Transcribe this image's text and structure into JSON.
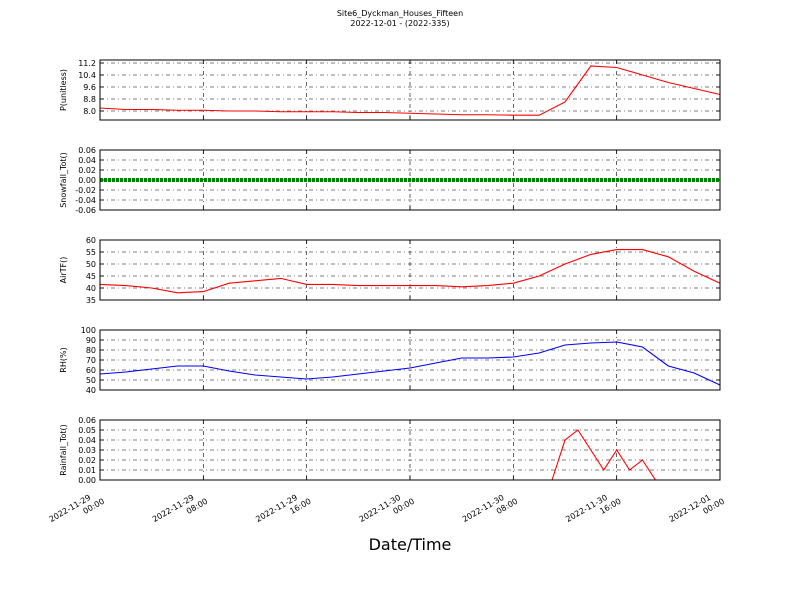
{
  "title": "Site6_Dyckman_Houses_Fifteen",
  "subtitle": "2022-12-01 - (2022-335)",
  "xlabel": "Date/Time",
  "xlim": [
    "2022-11-29 00:00",
    "2022-12-01 00:00"
  ],
  "xticks": [
    {
      "value": "2022-11-29 00:00",
      "label": "2022-11-29\n00:00"
    },
    {
      "value": "2022-11-29 08:00",
      "label": "2022-11-29\n08:00"
    },
    {
      "value": "2022-11-29 16:00",
      "label": "2022-11-29\n16:00"
    },
    {
      "value": "2022-11-30 00:00",
      "label": "2022-11-30\n00:00"
    },
    {
      "value": "2022-11-30 08:00",
      "label": "2022-11-30\n08:00"
    },
    {
      "value": "2022-11-30 16:00",
      "label": "2022-11-30\n16:00"
    },
    {
      "value": "2022-12-01 00:00",
      "label": "2022-12-01\n00:00"
    }
  ],
  "grid": true,
  "chart_data": [
    {
      "type": "line",
      "ylabel": "P(unitless)",
      "color": "#ff0000",
      "ylim": [
        7.4,
        11.4
      ],
      "yticks": [
        {
          "value": 8,
          "label": "8.0"
        },
        {
          "value": 8.8,
          "label": "8.8"
        },
        {
          "value": 9.6,
          "label": "9.6"
        },
        {
          "value": 10.4,
          "label": "10.4"
        },
        {
          "value": 11.2,
          "label": "11.2"
        }
      ],
      "x": [
        "2022-11-29 00:00",
        "2022-11-29 02:00",
        "2022-11-29 04:00",
        "2022-11-29 06:00",
        "2022-11-29 08:00",
        "2022-11-29 10:00",
        "2022-11-29 12:00",
        "2022-11-29 14:00",
        "2022-11-29 16:00",
        "2022-11-29 18:00",
        "2022-11-29 20:00",
        "2022-11-29 22:00",
        "2022-11-30 00:00",
        "2022-11-30 02:00",
        "2022-11-30 04:00",
        "2022-11-30 06:00",
        "2022-11-30 08:00",
        "2022-11-30 10:00",
        "2022-11-30 12:00",
        "2022-11-30 14:00",
        "2022-11-30 16:00",
        "2022-11-30 18:00",
        "2022-11-30 20:00",
        "2022-11-30 22:00",
        "2022-12-01 00:00"
      ],
      "values": [
        8.2,
        8.1,
        8.1,
        8.05,
        8.05,
        8.0,
        8.0,
        7.95,
        7.95,
        7.95,
        7.9,
        7.9,
        7.85,
        7.8,
        7.75,
        7.75,
        7.72,
        7.72,
        8.6,
        11.0,
        10.9,
        10.4,
        9.9,
        9.5,
        9.1
      ]
    },
    {
      "type": "line",
      "ylabel": "Snowfall_Tot()",
      "color": "#008000",
      "ylim": [
        -0.06,
        0.06
      ],
      "yticks": [
        {
          "value": -0.06,
          "label": "-0.06"
        },
        {
          "value": -0.04,
          "label": "-0.04"
        },
        {
          "value": -0.02,
          "label": "-0.02"
        },
        {
          "value": 0,
          "label": "0.00"
        },
        {
          "value": 0.02,
          "label": "0.02"
        },
        {
          "value": 0.04,
          "label": "0.04"
        },
        {
          "value": 0.06,
          "label": "0.06"
        }
      ],
      "x": [
        "2022-11-29 00:00",
        "2022-11-29 02:00",
        "2022-11-29 04:00",
        "2022-11-29 06:00",
        "2022-11-29 08:00",
        "2022-11-29 10:00",
        "2022-11-29 12:00",
        "2022-11-29 14:00",
        "2022-11-29 16:00",
        "2022-11-29 18:00",
        "2022-11-29 20:00",
        "2022-11-29 22:00",
        "2022-11-30 00:00",
        "2022-11-30 02:00",
        "2022-11-30 04:00",
        "2022-11-30 06:00",
        "2022-11-30 08:00",
        "2022-11-30 10:00",
        "2022-11-30 12:00",
        "2022-11-30 14:00",
        "2022-11-30 16:00",
        "2022-11-30 18:00",
        "2022-11-30 20:00",
        "2022-11-30 22:00",
        "2022-12-01 00:00"
      ],
      "values": [
        0,
        0,
        0,
        0,
        0,
        0,
        0,
        0,
        0,
        0,
        0,
        0,
        0,
        0,
        0,
        0,
        0,
        0,
        0,
        0,
        0,
        0,
        0,
        0,
        0
      ]
    },
    {
      "type": "line",
      "ylabel": "AirTF()",
      "color": "#ff0000",
      "ylim": [
        35,
        60
      ],
      "yticks": [
        35,
        40,
        45,
        50,
        55,
        60
      ],
      "x": [
        "2022-11-29 00:00",
        "2022-11-29 02:00",
        "2022-11-29 04:00",
        "2022-11-29 06:00",
        "2022-11-29 08:00",
        "2022-11-29 10:00",
        "2022-11-29 12:00",
        "2022-11-29 14:00",
        "2022-11-29 16:00",
        "2022-11-29 18:00",
        "2022-11-29 20:00",
        "2022-11-29 22:00",
        "2022-11-30 00:00",
        "2022-11-30 02:00",
        "2022-11-30 04:00",
        "2022-11-30 06:00",
        "2022-11-30 08:00",
        "2022-11-30 10:00",
        "2022-11-30 12:00",
        "2022-11-30 14:00",
        "2022-11-30 16:00",
        "2022-11-30 18:00",
        "2022-11-30 20:00",
        "2022-11-30 22:00",
        "2022-12-01 00:00"
      ],
      "values": [
        41.5,
        41,
        40,
        38,
        38.5,
        42,
        43,
        44,
        41.5,
        41.5,
        41,
        41,
        41,
        41,
        40.5,
        41,
        42,
        45,
        50,
        54,
        56,
        56,
        53,
        47,
        42
      ]
    },
    {
      "type": "line",
      "ylabel": "RH(%)",
      "color": "#0000ff",
      "ylim": [
        40,
        100
      ],
      "yticks": [
        40,
        50,
        60,
        70,
        80,
        90,
        100
      ],
      "x": [
        "2022-11-29 00:00",
        "2022-11-29 02:00",
        "2022-11-29 04:00",
        "2022-11-29 06:00",
        "2022-11-29 08:00",
        "2022-11-29 10:00",
        "2022-11-29 12:00",
        "2022-11-29 14:00",
        "2022-11-29 16:00",
        "2022-11-29 18:00",
        "2022-11-29 20:00",
        "2022-11-29 22:00",
        "2022-11-30 00:00",
        "2022-11-30 02:00",
        "2022-11-30 04:00",
        "2022-11-30 06:00",
        "2022-11-30 08:00",
        "2022-11-30 10:00",
        "2022-11-30 12:00",
        "2022-11-30 14:00",
        "2022-11-30 16:00",
        "2022-11-30 18:00",
        "2022-11-30 20:00",
        "2022-11-30 22:00",
        "2022-12-01 00:00"
      ],
      "values": [
        56,
        58,
        61,
        64,
        64,
        59,
        55,
        53,
        51,
        53,
        56,
        59,
        62,
        67,
        72,
        72,
        73,
        77,
        85,
        87,
        88,
        83,
        64,
        57,
        45
      ]
    },
    {
      "type": "line",
      "ylabel": "Rainfall_Tot()",
      "color": "#ff0000",
      "ylim": [
        0,
        0.06
      ],
      "yticks": [
        {
          "value": 0,
          "label": "0.00"
        },
        {
          "value": 0.01,
          "label": "0.01"
        },
        {
          "value": 0.02,
          "label": "0.02"
        },
        {
          "value": 0.03,
          "label": "0.03"
        },
        {
          "value": 0.04,
          "label": "0.04"
        },
        {
          "value": 0.05,
          "label": "0.05"
        },
        {
          "value": 0.06,
          "label": "0.06"
        }
      ],
      "x": [
        "2022-11-29 00:00",
        "2022-11-30 10:00",
        "2022-11-30 11:00",
        "2022-11-30 12:00",
        "2022-11-30 13:00",
        "2022-11-30 14:00",
        "2022-11-30 15:00",
        "2022-11-30 16:00",
        "2022-11-30 17:00",
        "2022-11-30 18:00",
        "2022-11-30 19:00",
        "2022-11-30 20:00",
        "2022-12-01 00:00"
      ],
      "values": [
        0,
        0,
        0,
        0.04,
        0.05,
        0.03,
        0.01,
        0.03,
        0.01,
        0.02,
        0,
        0,
        0
      ]
    }
  ]
}
